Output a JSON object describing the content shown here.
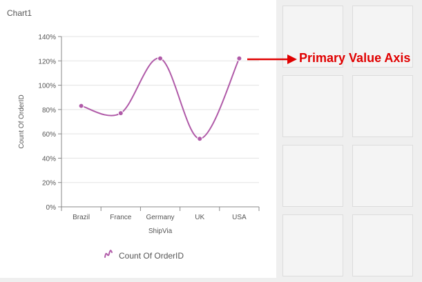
{
  "panel": {
    "title": "Chart1"
  },
  "callout": {
    "text": "Primary Value Axis",
    "color": "#e00000"
  },
  "chart_data": {
    "type": "line",
    "categories": [
      "Brazil",
      "France",
      "Germany",
      "UK",
      "USA"
    ],
    "series": [
      {
        "name": "Count Of OrderID",
        "values": [
          83,
          77,
          122,
          56,
          122
        ],
        "color": "#b05aa8"
      }
    ],
    "xlabel": "ShipVia",
    "ylabel": "Count Of OrderID",
    "ylim": [
      0,
      140
    ],
    "yticks": [
      "0%",
      "20%",
      "40%",
      "60%",
      "80%",
      "100%",
      "120%",
      "140%"
    ],
    "grid": true,
    "legend_position": "bottom",
    "interpolation": "spline"
  }
}
